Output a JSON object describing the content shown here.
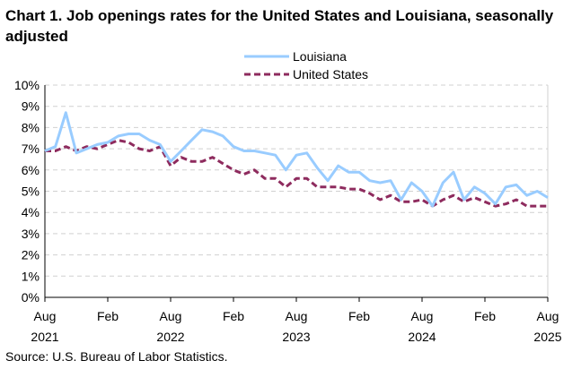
{
  "chart_data": {
    "type": "line",
    "title": "Chart 1. Job openings rates for the United States and Louisiana, seasonally adjusted",
    "source": "Source: U.S. Bureau of Labor Statistics.",
    "ylim": [
      0,
      10
    ],
    "y_ticks": [
      "0%",
      "1%",
      "2%",
      "3%",
      "4%",
      "5%",
      "6%",
      "7%",
      "8%",
      "9%",
      "10%"
    ],
    "x_ticks": [
      {
        "month": 0,
        "label1": "Aug",
        "label2": "2021"
      },
      {
        "month": 6,
        "label1": "Feb",
        "label2": ""
      },
      {
        "month": 12,
        "label1": "Aug",
        "label2": "2022"
      },
      {
        "month": 18,
        "label1": "Feb",
        "label2": ""
      },
      {
        "month": 24,
        "label1": "Aug",
        "label2": "2023"
      },
      {
        "month": 30,
        "label1": "Feb",
        "label2": ""
      },
      {
        "month": 36,
        "label1": "Aug",
        "label2": "2024"
      },
      {
        "month": 42,
        "label1": "Feb",
        "label2": ""
      },
      {
        "month": 48,
        "label1": "Aug",
        "label2": "2025"
      }
    ],
    "x_range": [
      "Aug 2021",
      "Aug 2025"
    ],
    "grid": true,
    "legend_position": "top",
    "series": [
      {
        "name": "Louisiana",
        "color": "#99ccff",
        "style": "solid",
        "values": [
          6.9,
          7.1,
          8.7,
          6.8,
          7.0,
          7.2,
          7.3,
          7.6,
          7.7,
          7.7,
          7.4,
          7.2,
          6.4,
          6.9,
          7.4,
          7.9,
          7.8,
          7.6,
          7.1,
          6.9,
          6.9,
          6.8,
          6.7,
          6.0,
          6.7,
          6.8,
          6.1,
          5.5,
          6.2,
          5.9,
          5.9,
          5.5,
          5.4,
          5.5,
          4.6,
          5.4,
          5.0,
          4.3,
          5.4,
          5.9,
          4.6,
          5.2,
          4.9,
          4.4,
          5.2,
          5.3,
          4.8,
          5.0,
          4.7
        ]
      },
      {
        "name": "United States",
        "color": "#8e2b5e",
        "style": "dashed",
        "values": [
          6.9,
          6.9,
          7.1,
          6.9,
          7.1,
          7.0,
          7.2,
          7.4,
          7.3,
          7.0,
          6.9,
          7.1,
          6.2,
          6.6,
          6.4,
          6.4,
          6.6,
          6.3,
          6.0,
          5.8,
          6.0,
          5.6,
          5.6,
          5.2,
          5.6,
          5.6,
          5.2,
          5.2,
          5.2,
          5.1,
          5.1,
          4.9,
          4.6,
          4.8,
          4.5,
          4.5,
          4.6,
          4.3,
          4.6,
          4.8,
          4.5,
          4.7,
          4.5,
          4.3,
          4.4,
          4.6,
          4.3,
          4.3,
          4.3
        ]
      }
    ]
  }
}
